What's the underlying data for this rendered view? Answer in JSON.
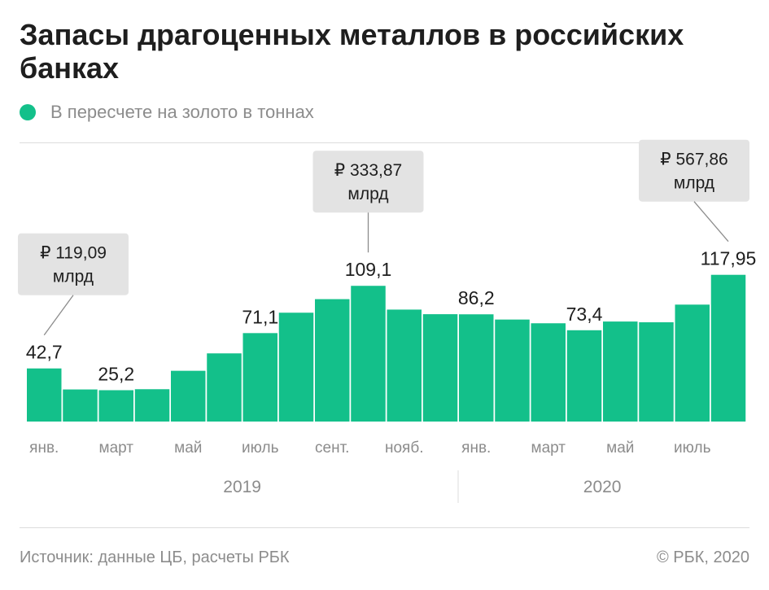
{
  "title": "Запасы драгоценных металлов в российских банках",
  "legend": "В пересчете на золото в тоннах",
  "source": "Источник: данные ЦБ, расчеты РБК",
  "copyright": "© РБК, 2020",
  "colors": {
    "bar": "#13c08a",
    "callout_bg": "#e3e3e3",
    "text_dark": "#1e1e1e",
    "text_gray": "#8c8c8c",
    "rule": "#dcdcdc"
  },
  "chart_data": {
    "type": "bar",
    "unit": "тонн",
    "months": [
      "2019-01",
      "2019-02",
      "2019-03",
      "2019-04",
      "2019-05",
      "2019-06",
      "2019-07",
      "2019-08",
      "2019-09",
      "2019-10",
      "2019-11",
      "2019-12",
      "2020-01",
      "2020-02",
      "2020-03",
      "2020-04",
      "2020-05",
      "2020-06",
      "2020-07",
      "2020-08"
    ],
    "values": [
      42.7,
      25.8,
      25.2,
      26.0,
      40.8,
      54.8,
      71.1,
      87.5,
      98.4,
      109.1,
      90.0,
      86.3,
      86.2,
      82.0,
      79.0,
      73.4,
      80.4,
      79.8,
      94.0,
      117.95
    ],
    "ylim": [
      0,
      140
    ],
    "value_labels": [
      {
        "index": 0,
        "text": "42,7"
      },
      {
        "index": 2,
        "text": "25,2"
      },
      {
        "index": 6,
        "text": "71,1"
      },
      {
        "index": 9,
        "text": "109,1"
      },
      {
        "index": 12,
        "text": "86,2"
      },
      {
        "index": 15,
        "text": "73,4"
      },
      {
        "index": 19,
        "text": "117,95"
      }
    ],
    "tick_labels": [
      {
        "index": 0,
        "text": "янв."
      },
      {
        "index": 2,
        "text": "март"
      },
      {
        "index": 4,
        "text": "май"
      },
      {
        "index": 6,
        "text": "июль"
      },
      {
        "index": 8,
        "text": "сент."
      },
      {
        "index": 10,
        "text": "нояб."
      },
      {
        "index": 12,
        "text": "янв."
      },
      {
        "index": 14,
        "text": "март"
      },
      {
        "index": 16,
        "text": "май"
      },
      {
        "index": 18,
        "text": "июль"
      }
    ],
    "years": [
      {
        "label": "2019",
        "start": 0,
        "end": 11
      },
      {
        "label": "2020",
        "start": 12,
        "end": 19
      }
    ],
    "callouts": [
      {
        "index": 0,
        "line1": "₽ 119,09",
        "line2": "млрд"
      },
      {
        "index": 9,
        "line1": "₽ 333,87",
        "line2": "млрд"
      },
      {
        "index": 19,
        "line1": "₽ 567,86",
        "line2": "млрд"
      }
    ]
  }
}
